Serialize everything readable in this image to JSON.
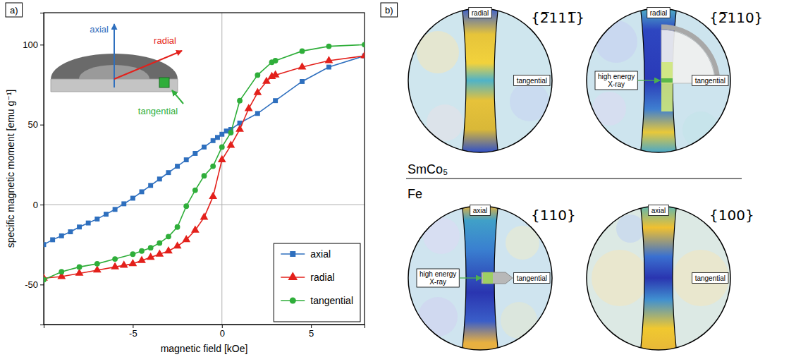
{
  "chart_data": {
    "type": "line",
    "panel_label": "a)",
    "x_label": "magnetic field [kOe]",
    "y_label": "specific magnetic moment [emu g⁻¹]",
    "xlim": [
      -10,
      8
    ],
    "xticks": [
      -5,
      0,
      5
    ],
    "ylim": [
      -75,
      120
    ],
    "yticks": [
      -50,
      0,
      50,
      100
    ],
    "legend": "lower right",
    "annotations": [
      "axial",
      "radial",
      "tangential"
    ],
    "series": [
      {
        "name": "axial",
        "color": "#2e6fbe",
        "marker": "square",
        "x": [
          -10,
          -9.5,
          -9,
          -8.5,
          -8,
          -7.5,
          -7,
          -6.5,
          -6,
          -5.5,
          -5,
          -4.5,
          -4,
          -3.5,
          -3,
          -2.5,
          -2,
          -1.5,
          -1,
          -0.5,
          -0.25,
          0,
          0.25,
          0.5,
          1,
          2,
          3,
          4.5,
          6,
          8
        ],
        "values": [
          -25,
          -22,
          -19.5,
          -17,
          -14,
          -11.5,
          -9,
          -6,
          -3,
          0.5,
          4,
          8,
          12,
          16,
          20,
          24,
          28,
          32,
          36,
          40,
          42,
          44,
          46,
          47,
          51,
          57,
          65,
          77,
          86,
          93
        ]
      },
      {
        "name": "radial",
        "color": "#e3201b",
        "marker": "triangle",
        "x": [
          -10,
          -9,
          -8,
          -7,
          -6,
          -5.5,
          -5,
          -4.5,
          -4,
          -3.5,
          -3,
          -2.5,
          -2,
          -1.5,
          -1,
          -0.5,
          0,
          0.5,
          1,
          1.5,
          2,
          2.5,
          2.8,
          3,
          4.5,
          6,
          8
        ],
        "values": [
          -46,
          -45,
          -43,
          -41,
          -39,
          -38,
          -37,
          -35,
          -33,
          -31,
          -29,
          -26,
          -22,
          -16,
          -8,
          5,
          28,
          37,
          47,
          60,
          70,
          77,
          80,
          81,
          86,
          90,
          93
        ]
      },
      {
        "name": "tangential",
        "color": "#2fae3a",
        "marker": "circle",
        "x": [
          -10,
          -9,
          -8,
          -7,
          -6,
          -5,
          -4.5,
          -4,
          -3.5,
          -3,
          -2.5,
          -2,
          -1.5,
          -1,
          -0.5,
          0,
          0.5,
          1,
          2,
          2.8,
          3,
          4.5,
          6,
          8
        ],
        "values": [
          -47,
          -42,
          -39,
          -37,
          -34,
          -31,
          -29,
          -27,
          -24,
          -20,
          -14,
          -1,
          9,
          18,
          24,
          36,
          45,
          65,
          81,
          89,
          90,
          96,
          99,
          100
        ]
      }
    ]
  },
  "panel_b": {
    "label": "b)",
    "groups": [
      {
        "name": "SmCo₅",
        "figures": [
          {
            "title": "{2̅111̅}",
            "top_label": "radial",
            "side_label": "tangential"
          },
          {
            "title": "{2̅110}",
            "top_label": "radial",
            "side_label": "tangential",
            "beam_label": "high energy X-ray"
          }
        ]
      },
      {
        "name": "Fe",
        "figures": [
          {
            "title": "{110}",
            "top_label": "axial",
            "side_label": "tangential",
            "beam_label": "high energy X-ray"
          },
          {
            "title": "{100}",
            "top_label": "axial",
            "side_label": "tangential"
          }
        ]
      }
    ]
  }
}
